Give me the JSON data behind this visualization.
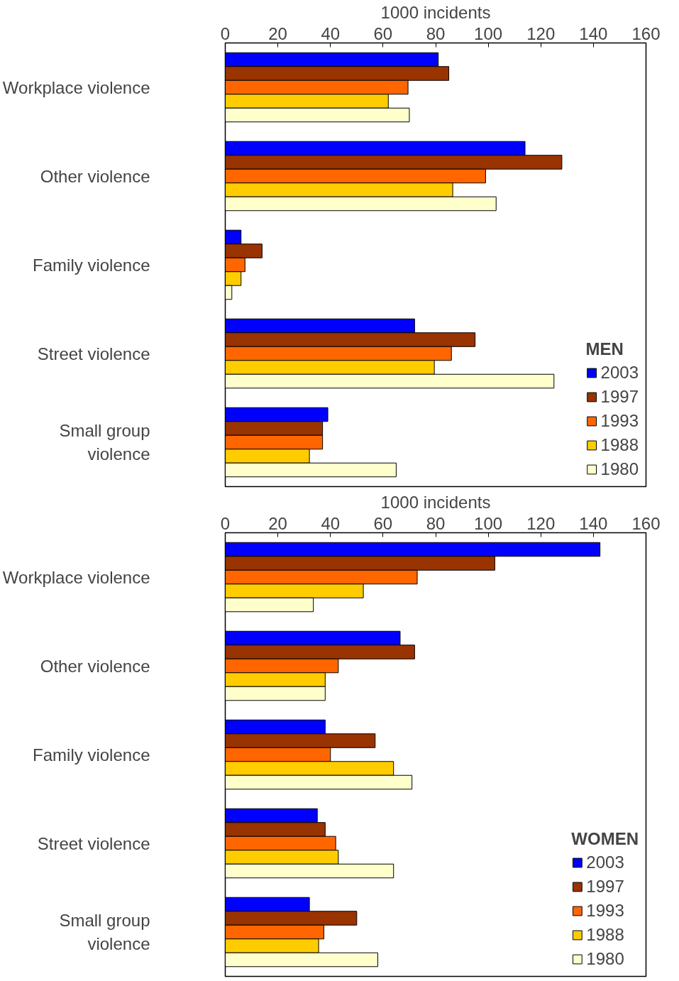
{
  "chart_data": [
    {
      "type": "bar",
      "orientation": "horizontal",
      "xlabel": "1000 incidents",
      "legend_title": "MEN",
      "legend": "bottom right",
      "grid": false,
      "categories": [
        "Workplace violence",
        "Other violence",
        "Family violence",
        "Street violence",
        "Small group violence"
      ],
      "xlim": [
        0,
        160
      ],
      "xticks": [
        0,
        20,
        40,
        60,
        80,
        100,
        120,
        140,
        160
      ],
      "series": [
        {
          "name": "2003",
          "color": "#0000ff",
          "values": [
            81,
            114,
            6,
            72,
            39
          ]
        },
        {
          "name": "1997",
          "color": "#993300",
          "values": [
            85,
            128,
            14,
            95,
            37
          ]
        },
        {
          "name": "1993",
          "color": "#ff6600",
          "values": [
            69.5,
            99,
            7.5,
            86,
            37
          ]
        },
        {
          "name": "1988",
          "color": "#ffcc00",
          "values": [
            62,
            86.5,
            6,
            79.5,
            32
          ]
        },
        {
          "name": "1980",
          "color": "#ffffcc",
          "values": [
            70,
            103,
            2.5,
            125,
            65
          ]
        }
      ]
    },
    {
      "type": "bar",
      "orientation": "horizontal",
      "xlabel": "1000 incidents",
      "legend_title": "WOMEN",
      "legend": "bottom right",
      "grid": false,
      "categories": [
        "Workplace violence",
        "Other violence",
        "Family violence",
        "Street violence",
        "Small group violence"
      ],
      "xlim": [
        0,
        160
      ],
      "xticks": [
        0,
        20,
        40,
        60,
        80,
        100,
        120,
        140,
        160
      ],
      "series": [
        {
          "name": "2003",
          "color": "#0000ff",
          "values": [
            142.5,
            66.5,
            38,
            35,
            32
          ]
        },
        {
          "name": "1997",
          "color": "#993300",
          "values": [
            102.5,
            72,
            57,
            38,
            50
          ]
        },
        {
          "name": "1993",
          "color": "#ff6600",
          "values": [
            73,
            43,
            40,
            42,
            37.5
          ]
        },
        {
          "name": "1988",
          "color": "#ffcc00",
          "values": [
            52.5,
            38,
            64,
            43,
            35.5
          ]
        },
        {
          "name": "1980",
          "color": "#ffffcc",
          "values": [
            33.5,
            38,
            71,
            64,
            58
          ]
        }
      ]
    }
  ]
}
